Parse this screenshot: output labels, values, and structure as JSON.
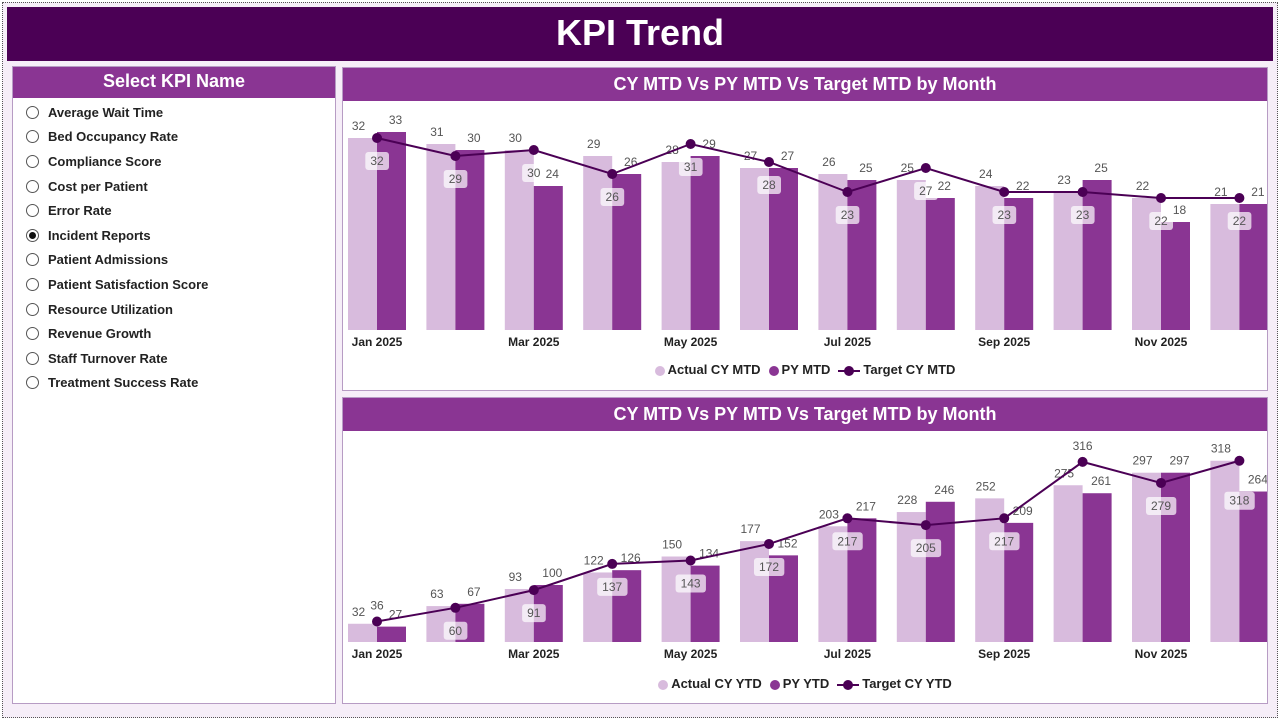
{
  "title": "KPI Trend",
  "colors": {
    "header": "#4b0055",
    "panel_title": "#8a3593",
    "actual": "#d8bbdd",
    "py": "#8a3593",
    "target": "#4b0055"
  },
  "slicer": {
    "title": "Select KPI Name",
    "selected": "Incident Reports",
    "items": [
      "Average Wait Time",
      "Bed Occupancy Rate",
      "Compliance Score",
      "Cost per Patient",
      "Error Rate",
      "Incident Reports",
      "Patient Admissions",
      "Patient Satisfaction Score",
      "Resource Utilization",
      "Revenue Growth",
      "Staff Turnover Rate",
      "Treatment Success Rate"
    ]
  },
  "chart_data": [
    {
      "type": "bar",
      "title": "CY MTD Vs PY MTD Vs Target MTD by Month",
      "categories": [
        "Jan 2025",
        "Feb 2025",
        "Mar 2025",
        "Apr 2025",
        "May 2025",
        "Jun 2025",
        "Jul 2025",
        "Aug 2025",
        "Sep 2025",
        "Oct 2025",
        "Nov 2025",
        "Dec 2025"
      ],
      "tick_labels": [
        "Jan 2025",
        "",
        "Mar 2025",
        "",
        "May 2025",
        "",
        "Jul 2025",
        "",
        "Sep 2025",
        "",
        "Nov 2025",
        ""
      ],
      "legend": "bottom",
      "series": [
        {
          "name": "Actual CY MTD",
          "kind": "bar",
          "values": [
            32,
            31,
            30,
            29,
            28,
            27,
            26,
            25,
            24,
            23,
            22,
            21
          ]
        },
        {
          "name": "PY MTD",
          "kind": "bar",
          "values": [
            33,
            30,
            24,
            26,
            29,
            27,
            25,
            22,
            22,
            25,
            18,
            21
          ]
        },
        {
          "name": "Target CY MTD",
          "kind": "line",
          "values": [
            32,
            29,
            30,
            26,
            31,
            28,
            23,
            27,
            23,
            23,
            22,
            22
          ]
        }
      ]
    },
    {
      "type": "bar",
      "title": "CY MTD Vs PY MTD Vs Target MTD by Month",
      "categories": [
        "Jan 2025",
        "Feb 2025",
        "Mar 2025",
        "Apr 2025",
        "May 2025",
        "Jun 2025",
        "Jul 2025",
        "Aug 2025",
        "Sep 2025",
        "Oct 2025",
        "Nov 2025",
        "Dec 2025"
      ],
      "tick_labels": [
        "Jan 2025",
        "",
        "Mar 2025",
        "",
        "May 2025",
        "",
        "Jul 2025",
        "",
        "Sep 2025",
        "",
        "Nov 2025",
        ""
      ],
      "legend": "bottom",
      "series": [
        {
          "name": "Actual CY YTD",
          "kind": "bar",
          "values": [
            32,
            63,
            93,
            122,
            150,
            177,
            203,
            228,
            252,
            275,
            297,
            318
          ]
        },
        {
          "name": "PY YTD",
          "kind": "bar",
          "values": [
            27,
            67,
            100,
            126,
            134,
            152,
            217,
            246,
            209,
            261,
            297,
            264
          ]
        },
        {
          "name": "Target CY YTD",
          "kind": "line",
          "values": [
            36,
            60,
            91,
            137,
            143,
            172,
            217,
            205,
            217,
            316,
            279,
            318
          ]
        }
      ]
    }
  ]
}
